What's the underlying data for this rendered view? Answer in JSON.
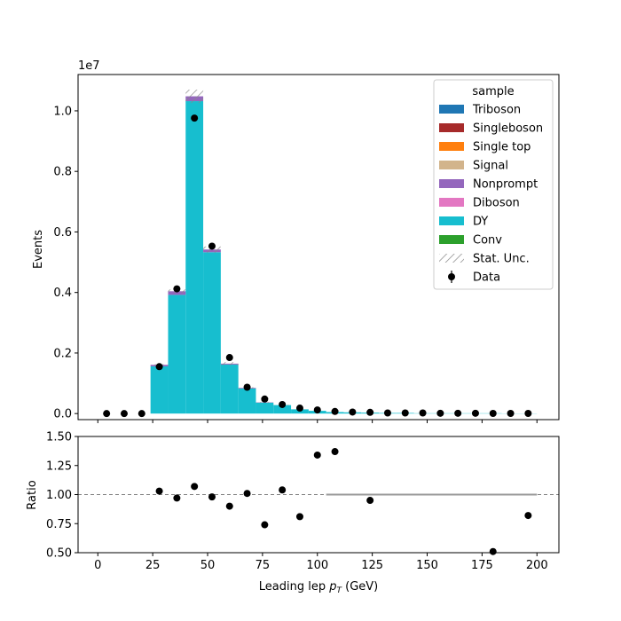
{
  "chart_data": {
    "type": "bar",
    "x_bin_edges": [
      24,
      32,
      40,
      48,
      56,
      64,
      72,
      80,
      88,
      96,
      104,
      112,
      120,
      128,
      136,
      144,
      152,
      160,
      168,
      176,
      184,
      192,
      200
    ],
    "stacked_series": [
      {
        "name": "DY",
        "color": "#17becf",
        "values": [
          1.56,
          3.92,
          10.32,
          5.33,
          1.62,
          0.83,
          0.36,
          0.28,
          0.14,
          0.09,
          0.05,
          0.04,
          0.03,
          0.02,
          0.02,
          0.01,
          0.01,
          0.01,
          0.01,
          0.01,
          0.005,
          0.005
        ]
      },
      {
        "name": "Nonprompt",
        "color": "#9467bd",
        "values": [
          0.05,
          0.12,
          0.16,
          0.09,
          0.03,
          0.02,
          0.01,
          0.0,
          0.0,
          0.0,
          0.0,
          0.0,
          0.0,
          0.0,
          0.0,
          0.0,
          0.0,
          0.0,
          0.0,
          0.0,
          0.0,
          0.0
        ]
      },
      {
        "name": "Diboson",
        "color": "#e377c2",
        "values": [
          0.0,
          0.0,
          0.0,
          0.0,
          0.0,
          0.0,
          0.0,
          0.0,
          0.0,
          0.0,
          0.0,
          0.0,
          0.0,
          0.0,
          0.0,
          0.0,
          0.0,
          0.0,
          0.0,
          0.0,
          0.0,
          0.0
        ]
      },
      {
        "name": "Conv",
        "color": "#2ca02c",
        "values": [
          0.0,
          0.0,
          0.0,
          0.0,
          0.0,
          0.0,
          0.0,
          0.0,
          0.0,
          0.0,
          0.0,
          0.0,
          0.0,
          0.0,
          0.0,
          0.0,
          0.0,
          0.0,
          0.0,
          0.0,
          0.0,
          0.0
        ]
      }
    ],
    "stat_unc": [
      0.02,
      0.06,
      0.22,
      0.1,
      0.05,
      0.02,
      0.01,
      0.01,
      0.0,
      0.0,
      0.0,
      0.0,
      0.0,
      0.0,
      0.0,
      0.0,
      0.0,
      0.0,
      0.0,
      0.0,
      0.0,
      0.0
    ],
    "data_points": {
      "name": "Data",
      "x": [
        4,
        12,
        20,
        28,
        36,
        44,
        52,
        60,
        68,
        76,
        84,
        92,
        100,
        108,
        116,
        124,
        132,
        140,
        148,
        156,
        164,
        172,
        180,
        188,
        196
      ],
      "y": [
        0.0,
        0.0,
        0.0,
        1.55,
        4.12,
        9.76,
        5.53,
        1.85,
        0.87,
        0.48,
        0.3,
        0.18,
        0.12,
        0.07,
        0.05,
        0.04,
        0.02,
        0.02,
        0.02,
        0.01,
        0.01,
        0.01,
        0.005,
        0.005,
        0.005
      ]
    },
    "ratio_points": {
      "x": [
        28,
        36,
        44,
        52,
        60,
        68,
        76,
        84,
        92,
        100,
        108,
        124,
        180,
        196
      ],
      "y": [
        1.03,
        0.97,
        1.07,
        0.98,
        0.9,
        1.01,
        0.74,
        1.04,
        0.81,
        1.34,
        1.37,
        0.95,
        0.51,
        0.82
      ]
    },
    "main_plot": {
      "ylabel": "Events",
      "exponent_label": "1e7",
      "ylim": [
        -0.2,
        11.2
      ],
      "yticks": [
        0.0,
        0.2,
        0.4,
        0.6,
        0.8,
        1.0
      ],
      "ytick_values": [
        0,
        2,
        4,
        6,
        8,
        10
      ]
    },
    "ratio_plot": {
      "ylabel": "Ratio",
      "ylim": [
        0.5,
        1.5
      ],
      "yticks": [
        "0.50",
        "0.75",
        "1.00",
        "1.25",
        "1.50"
      ],
      "ytick_values": [
        0.5,
        0.75,
        1.0,
        1.25,
        1.5
      ],
      "reference_line": 1.0
    },
    "xlabel_prefix": "Leading lep ",
    "xlabel_var": "p",
    "xlabel_sub": "T",
    "xlabel_suffix": " (GeV)",
    "xlim": [
      -9,
      210
    ],
    "xticks": [
      "0",
      "25",
      "50",
      "75",
      "100",
      "125",
      "150",
      "175",
      "200"
    ],
    "xtick_values": [
      0,
      25,
      50,
      75,
      100,
      125,
      150,
      175,
      200
    ],
    "legend": {
      "title": "sample",
      "placement": "top-right",
      "entries": [
        {
          "label": "Triboson",
          "color": "#1f77b4",
          "kind": "patch"
        },
        {
          "label": "Singleboson",
          "color": "#a62a2a",
          "kind": "patch"
        },
        {
          "label": "Single top",
          "color": "#ff7f0e",
          "kind": "patch"
        },
        {
          "label": "Signal",
          "color": "#d2b48c",
          "kind": "patch"
        },
        {
          "label": "Nonprompt",
          "color": "#9467bd",
          "kind": "patch"
        },
        {
          "label": "Diboson",
          "color": "#e377c2",
          "kind": "patch"
        },
        {
          "label": "DY",
          "color": "#17becf",
          "kind": "patch"
        },
        {
          "label": "Conv",
          "color": "#2ca02c",
          "kind": "patch"
        },
        {
          "label": "Stat. Unc.",
          "color": "#888888",
          "kind": "hatch"
        },
        {
          "label": "Data",
          "color": "#000000",
          "kind": "marker"
        }
      ]
    }
  }
}
